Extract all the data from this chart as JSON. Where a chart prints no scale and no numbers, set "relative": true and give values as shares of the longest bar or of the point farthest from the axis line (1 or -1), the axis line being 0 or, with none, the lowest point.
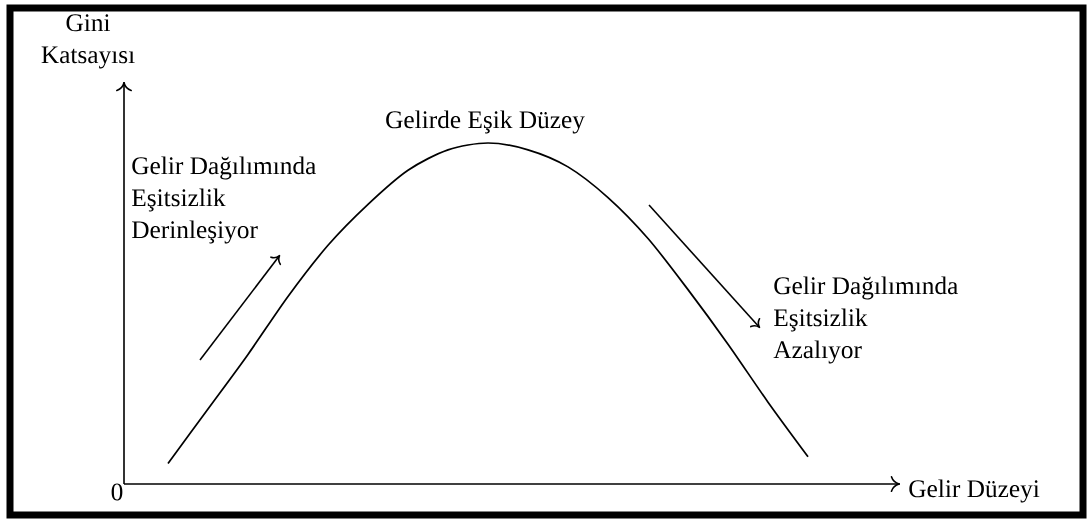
{
  "chart_data": {
    "type": "line",
    "relative": true,
    "xlabel": "Gelir Düzeyi",
    "ylabel": "Gini Katsayısı",
    "categories": [
      null,
      null,
      null,
      null,
      null,
      null,
      null,
      null,
      null,
      null,
      null,
      null,
      null,
      null,
      null,
      null,
      null
    ],
    "series": [
      {
        "color": "#000000",
        "values": [
          0.06,
          0.22,
          0.38,
          0.55,
          0.7,
          0.82,
          0.92,
          0.98,
          1,
          0.98,
          0.93,
          0.84,
          0.72,
          0.57,
          0.41,
          0.24,
          0.08
        ]
      }
    ],
    "annotations": [
      "0",
      "Gelirde Eşik Düzey",
      "Gelir Dağılımında",
      "Eşitsizlik",
      "Derinleşiyor",
      "Gelir Dağılımında",
      "Eşitsizlik",
      "Azalıyor"
    ]
  }
}
